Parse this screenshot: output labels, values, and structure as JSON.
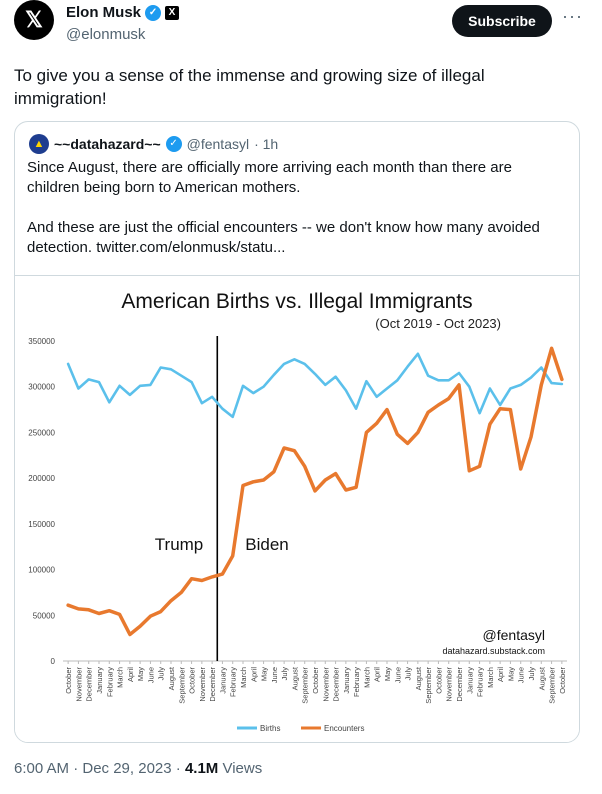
{
  "author": {
    "name": "Elon Musk",
    "handle": "@elonmusk"
  },
  "subscribe_label": "Subscribe",
  "tweet_text": "To give you a sense of the immense and growing size of illegal immigration!",
  "quote": {
    "name": "~~datahazard~~",
    "handle": "@fentasyl",
    "time": "· 1h",
    "paragraph1": "Since August, there are officially more arriving each month than there are children being born to American mothers.",
    "paragraph2": "And these are just the official encounters -- we don't know how many avoided detection.  twitter.com/elonmusk/statu..."
  },
  "meta": {
    "time": "6:00 AM · Dec 29, 2023 · ",
    "views": "4.1M",
    "views_label": " Views"
  },
  "chart_data": {
    "type": "line",
    "title": "American Births vs. Illegal Immigrants",
    "subtitle": "(Oct 2019 - Oct 2023)",
    "categories": [
      "October",
      "November",
      "December",
      "January",
      "February",
      "March",
      "April",
      "May",
      "June",
      "July",
      "August",
      "September",
      "October",
      "November",
      "December",
      "January",
      "February",
      "March",
      "April",
      "May",
      "June",
      "July",
      "August",
      "September",
      "October",
      "November",
      "December",
      "January",
      "February",
      "March",
      "April",
      "May",
      "June",
      "July",
      "August",
      "September",
      "October",
      "November",
      "December",
      "January",
      "February",
      "March",
      "April",
      "May",
      "June",
      "July",
      "August",
      "September",
      "October"
    ],
    "ylim": [
      0,
      350000
    ],
    "yticks": [
      "0",
      "50000",
      "100000",
      "150000",
      "200000",
      "250000",
      "300000",
      "350000"
    ],
    "series": [
      {
        "name": "Births",
        "color": "#5bc0eb",
        "values": [
          325000,
          298000,
          308000,
          305000,
          283000,
          301000,
          291000,
          301000,
          302000,
          321000,
          319000,
          312000,
          305000,
          282000,
          289000,
          276000,
          267000,
          301000,
          293000,
          300000,
          313000,
          325000,
          330000,
          325000,
          314000,
          302000,
          311000,
          296000,
          276000,
          306000,
          289000,
          298000,
          307000,
          322000,
          336000,
          312000,
          307000,
          307000,
          315000,
          300000,
          271000,
          298000,
          280000,
          298000,
          302000,
          310000,
          321000,
          304000,
          303000
        ]
      },
      {
        "name": "Encounters",
        "color": "#e8792e",
        "values": [
          61000,
          57000,
          56000,
          52000,
          55000,
          51000,
          29000,
          38000,
          49000,
          54000,
          66000,
          75000,
          90000,
          88000,
          92000,
          95000,
          115000,
          192000,
          196000,
          198000,
          207000,
          233000,
          230000,
          213000,
          186000,
          198000,
          205000,
          187000,
          190000,
          250000,
          260000,
          275000,
          248000,
          238000,
          250000,
          272000,
          280000,
          287000,
          302000,
          208000,
          213000,
          259000,
          276000,
          275000,
          210000,
          245000,
          302000,
          342000,
          308000
        ]
      }
    ],
    "annotations": {
      "left": "Trump",
      "right": "Biden",
      "watermark": "@fentasyl",
      "source": "datahazard.substack.com"
    },
    "divider_after_category_index": 15
  }
}
